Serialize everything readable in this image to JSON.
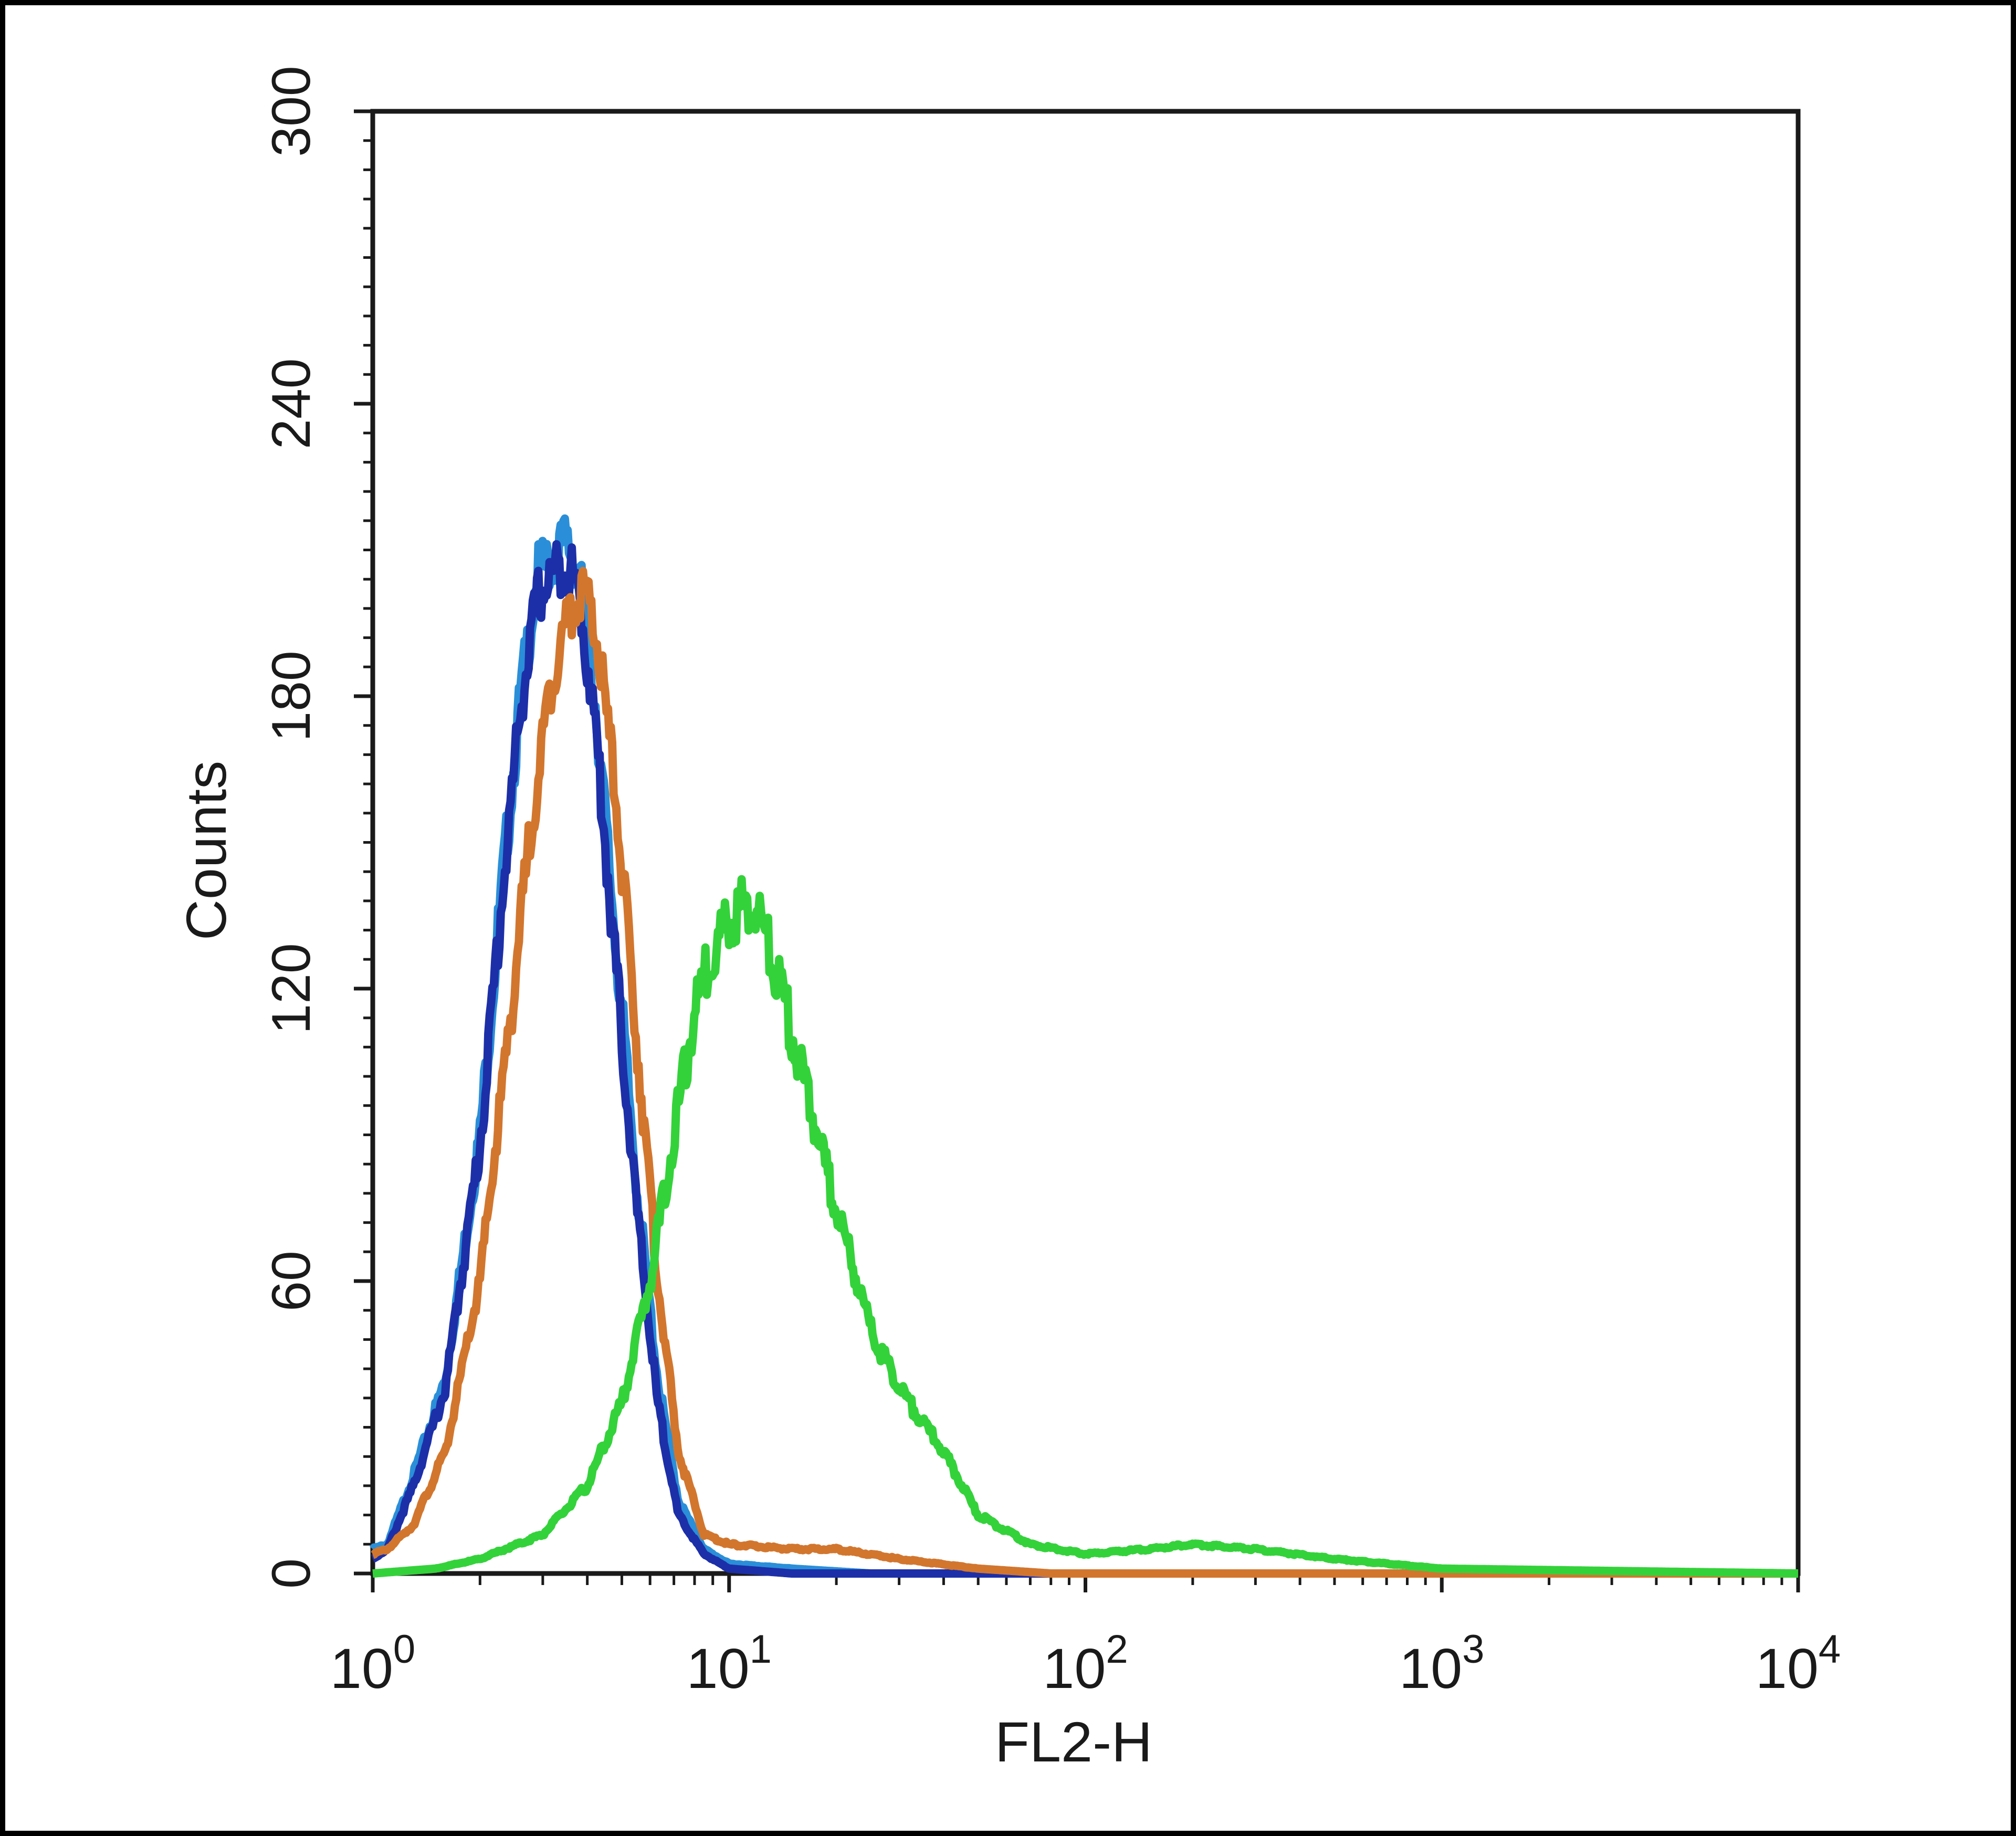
{
  "chart_data": {
    "type": "line",
    "title": "",
    "xlabel": "FL2-H",
    "ylabel": "Counts",
    "xscale": "log",
    "xlim": [
      1,
      10000
    ],
    "ylim": [
      0,
      300
    ],
    "x_ticks": [
      {
        "value": 1,
        "base": "10",
        "exp": "0"
      },
      {
        "value": 10,
        "base": "10",
        "exp": "1"
      },
      {
        "value": 100,
        "base": "10",
        "exp": "2"
      },
      {
        "value": 1000,
        "base": "10",
        "exp": "3"
      },
      {
        "value": 10000,
        "base": "10",
        "exp": "4"
      }
    ],
    "y_ticks": [
      0,
      60,
      120,
      180,
      240,
      300
    ],
    "grid": false,
    "legend": "none",
    "series": [
      {
        "color": "#2a8fd8",
        "x": [
          1,
          1.1,
          1.3,
          1.6,
          2.0,
          2.3,
          2.6,
          2.9,
          3.2,
          3.5,
          3.8,
          4.2,
          4.8,
          5.5,
          6.3,
          7.2,
          8.5,
          10,
          15,
          25,
          50,
          100,
          1000,
          10000
        ],
        "y": [
          5,
          6,
          20,
          40,
          90,
          140,
          180,
          205,
          208,
          212,
          205,
          180,
          130,
          80,
          40,
          15,
          5,
          2,
          1,
          0,
          0,
          0,
          0,
          0
        ]
      },
      {
        "color": "#1c2fa8",
        "x": [
          1,
          1.1,
          1.3,
          1.6,
          2.0,
          2.3,
          2.6,
          2.9,
          3.2,
          3.5,
          3.8,
          4.2,
          4.8,
          5.5,
          6.3,
          7.2,
          8.5,
          10,
          15,
          25,
          50,
          100,
          1000,
          10000
        ],
        "y": [
          3,
          5,
          18,
          38,
          88,
          138,
          178,
          200,
          205,
          208,
          200,
          175,
          125,
          75,
          35,
          12,
          4,
          1,
          0,
          0,
          0,
          0,
          0,
          0
        ]
      },
      {
        "color": "#d2762e",
        "x": [
          1,
          1.1,
          1.3,
          1.6,
          2.0,
          2.4,
          2.8,
          3.2,
          3.6,
          3.9,
          4.3,
          4.8,
          5.5,
          6.3,
          7.2,
          8.5,
          10,
          15,
          20,
          30,
          50,
          80,
          100,
          1000,
          10000
        ],
        "y": [
          4,
          5,
          10,
          25,
          60,
          110,
          155,
          185,
          198,
          202,
          190,
          160,
          110,
          60,
          25,
          8,
          6,
          5,
          5,
          3,
          1,
          0,
          0,
          0,
          0
        ]
      },
      {
        "color": "#34d23a",
        "x": [
          1,
          1.5,
          2,
          3,
          4,
          5,
          6,
          7,
          8,
          9,
          10,
          11,
          12,
          14,
          17,
          20,
          25,
          30,
          40,
          50,
          70,
          100,
          150,
          200,
          300,
          500,
          1000,
          10000
        ],
        "y": [
          0,
          1,
          3,
          8,
          18,
          35,
          60,
          90,
          115,
          128,
          134,
          137,
          136,
          120,
          95,
          75,
          50,
          38,
          25,
          12,
          6,
          4,
          5,
          6,
          5,
          3,
          1,
          0
        ]
      }
    ]
  }
}
